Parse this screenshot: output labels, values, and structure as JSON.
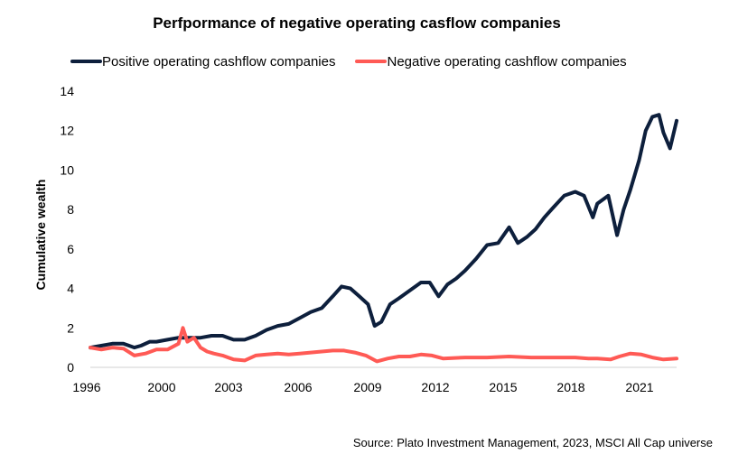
{
  "chart_data": {
    "type": "line",
    "title": "Perfpormance of negative operating casflow companies",
    "xlabel": "",
    "ylabel": "Cumulative wealth",
    "ylim": [
      0,
      14
    ],
    "yticks": [
      0,
      2,
      4,
      6,
      8,
      10,
      12,
      14
    ],
    "xticks": [
      "1996",
      "2000",
      "2003",
      "2006",
      "2009",
      "2012",
      "2015",
      "2018",
      "2021"
    ],
    "xlim": [
      1996.0,
      2022.6
    ],
    "grid": false,
    "legend": "top",
    "source": "Source: Plato Investment Management, 2023, MSCI All Cap universe",
    "series": [
      {
        "name": "Positive operating cashflow companies",
        "color": "#0d1f3c",
        "x": [
          1996.0,
          1996.5,
          1997.0,
          1997.5,
          1998.0,
          1998.3,
          1998.7,
          1999.0,
          1999.5,
          2000.0,
          2000.5,
          2001.0,
          2001.5,
          2002.0,
          2002.5,
          2003.0,
          2003.5,
          2004.0,
          2004.5,
          2005.0,
          2005.5,
          2006.0,
          2006.5,
          2007.0,
          2007.4,
          2007.8,
          2008.2,
          2008.6,
          2008.9,
          2009.2,
          2009.6,
          2010.0,
          2010.5,
          2011.0,
          2011.4,
          2011.8,
          2012.2,
          2012.6,
          2013.0,
          2013.5,
          2014.0,
          2014.5,
          2015.0,
          2015.4,
          2015.8,
          2016.2,
          2016.6,
          2017.0,
          2017.5,
          2018.0,
          2018.4,
          2018.8,
          2019.0,
          2019.5,
          2019.9,
          2020.2,
          2020.5,
          2020.9,
          2021.2,
          2021.5,
          2021.8,
          2022.0,
          2022.3,
          2022.6
        ],
        "values": [
          1.0,
          1.1,
          1.2,
          1.2,
          1.0,
          1.1,
          1.3,
          1.3,
          1.4,
          1.5,
          1.5,
          1.5,
          1.6,
          1.6,
          1.4,
          1.4,
          1.6,
          1.9,
          2.1,
          2.2,
          2.5,
          2.8,
          3.0,
          3.6,
          4.1,
          4.0,
          3.6,
          3.2,
          2.1,
          2.3,
          3.2,
          3.5,
          3.9,
          4.3,
          4.3,
          3.6,
          4.2,
          4.5,
          4.9,
          5.5,
          6.2,
          6.3,
          7.1,
          6.3,
          6.6,
          7.0,
          7.6,
          8.1,
          8.7,
          8.9,
          8.7,
          7.6,
          8.3,
          8.7,
          6.7,
          8.0,
          9.0,
          10.5,
          12.0,
          12.7,
          12.8,
          11.9,
          11.1,
          12.5
        ]
      },
      {
        "name": "Negative operating cashflow companies",
        "color": "#ff5a55",
        "x": [
          1996.0,
          1996.5,
          1997.0,
          1997.5,
          1998.0,
          1998.5,
          1999.0,
          1999.5,
          2000.0,
          2000.2,
          2000.4,
          2000.7,
          2001.0,
          2001.3,
          2001.6,
          2002.0,
          2002.5,
          2003.0,
          2003.5,
          2004.0,
          2004.5,
          2005.0,
          2005.5,
          2006.0,
          2006.5,
          2007.0,
          2007.5,
          2008.0,
          2008.5,
          2009.0,
          2009.5,
          2010.0,
          2010.5,
          2011.0,
          2011.5,
          2012.0,
          2013.0,
          2014.0,
          2015.0,
          2016.0,
          2017.0,
          2018.0,
          2018.6,
          2019.0,
          2019.6,
          2020.0,
          2020.5,
          2021.0,
          2021.5,
          2022.0,
          2022.6
        ],
        "values": [
          1.0,
          0.9,
          1.0,
          0.95,
          0.6,
          0.7,
          0.9,
          0.9,
          1.2,
          2.0,
          1.3,
          1.5,
          1.0,
          0.8,
          0.7,
          0.6,
          0.4,
          0.35,
          0.6,
          0.65,
          0.7,
          0.65,
          0.7,
          0.75,
          0.8,
          0.85,
          0.85,
          0.75,
          0.6,
          0.3,
          0.45,
          0.55,
          0.55,
          0.65,
          0.6,
          0.45,
          0.5,
          0.5,
          0.55,
          0.5,
          0.5,
          0.5,
          0.45,
          0.45,
          0.4,
          0.55,
          0.7,
          0.65,
          0.5,
          0.4,
          0.45
        ]
      }
    ]
  }
}
